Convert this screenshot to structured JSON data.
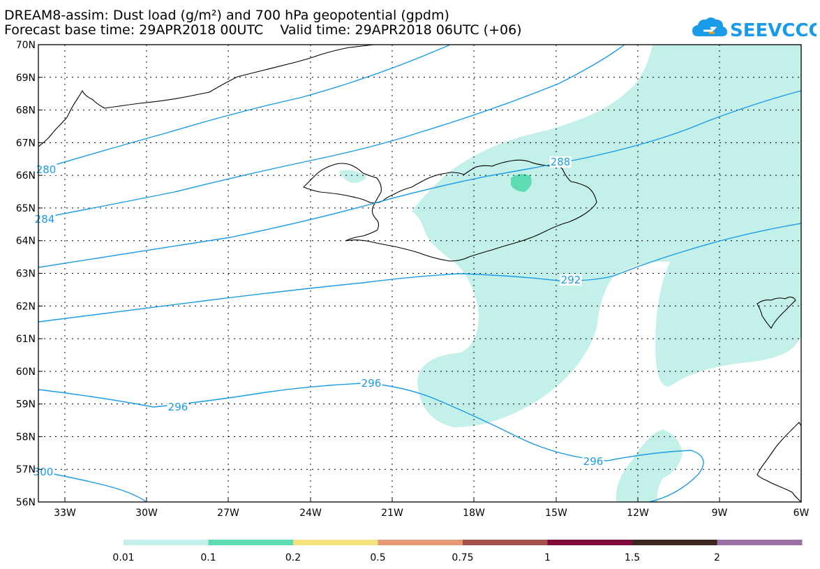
{
  "header": {
    "line1": "DREAM8-assim: Dust load (g/m²) and 700 hPa geopotential (gpdm)",
    "line2": "Forecast base time: 29APR2018 00UTC    Valid time: 29APR2018 06UTC (+06)"
  },
  "logo": {
    "text": "SEEVCCC",
    "icon": "cloud-icon",
    "color": "#1a9be8"
  },
  "map": {
    "lat_labels": [
      "70N",
      "69N",
      "68N",
      "67N",
      "66N",
      "65N",
      "64N",
      "63N",
      "62N",
      "61N",
      "60N",
      "59N",
      "58N",
      "57N",
      "56N"
    ],
    "lon_labels": [
      "33W",
      "30W",
      "27W",
      "24W",
      "21W",
      "18W",
      "15W",
      "12W",
      "9W",
      "6W"
    ],
    "contour_labels": [
      "280",
      "284",
      "288",
      "292",
      "296",
      "296",
      "296",
      "300"
    ],
    "contour_color": "#1a9be8"
  },
  "colorbar": {
    "labels": [
      "0.01",
      "0.1",
      "0.2",
      "0.5",
      "0.75",
      "1",
      "1.5",
      "2"
    ],
    "colors": [
      "#c4f0ea",
      "#5ddcb4",
      "#f4e27e",
      "#e69a74",
      "#a5504b",
      "#800a38",
      "#3b2621",
      "#9a6fa3"
    ]
  }
}
